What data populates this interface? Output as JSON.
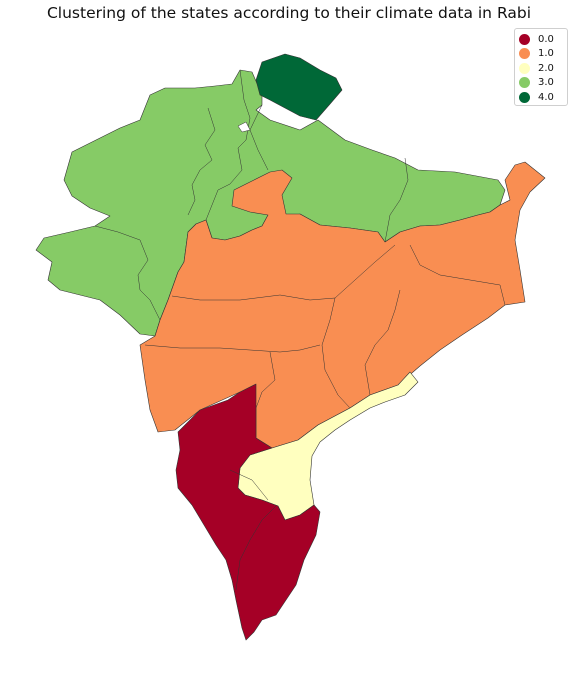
{
  "title": "Clustering of the states according to their climate data in Rabi",
  "legend": {
    "items": [
      {
        "label": "0.0",
        "color": "#a50026"
      },
      {
        "label": "1.0",
        "color": "#f98e52"
      },
      {
        "label": "2.0",
        "color": "#ffffbf"
      },
      {
        "label": "3.0",
        "color": "#86cb66"
      },
      {
        "label": "4.0",
        "color": "#006837"
      }
    ]
  },
  "colors": {
    "cluster_0": "#a50026",
    "cluster_1": "#f98e52",
    "cluster_2": "#ffffbf",
    "cluster_3": "#86cb66",
    "cluster_4": "#006837"
  }
}
